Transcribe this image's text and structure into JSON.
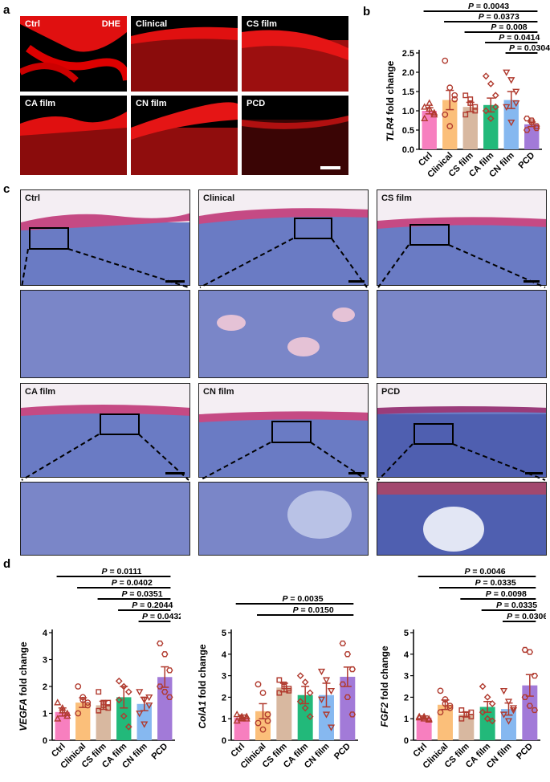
{
  "panels": {
    "a": "a",
    "b": "b",
    "c": "c",
    "d": "d"
  },
  "dhe": {
    "stain": "DHE",
    "tiles": [
      "Ctrl",
      "Clinical",
      "CS film",
      "CA film",
      "CN film",
      "PCD"
    ]
  },
  "he": {
    "tiles": [
      "Ctrl",
      "Clinical",
      "CS film",
      "CA film",
      "CN film",
      "PCD"
    ]
  },
  "colors": {
    "Ctrl": "#f77fbf",
    "Clinical": "#fbbf7a",
    "CS film": "#d8b8a0",
    "CA film": "#22b97a",
    "CN film": "#86b8f0",
    "PCD": "#a27ad8",
    "marker": "#b03a2e"
  },
  "chart_data": [
    {
      "type": "bar",
      "panel": "b",
      "ylabel": "TLR4 fold change",
      "ylabel_italic_part": "TLR4",
      "ylabel_rest": " fold change",
      "categories": [
        "Ctrl",
        "Clinical",
        "CS film",
        "CA film",
        "CN film",
        "PCD"
      ],
      "values": [
        1.0,
        1.28,
        1.1,
        1.15,
        1.28,
        0.65
      ],
      "errors": [
        0.08,
        0.25,
        0.12,
        0.18,
        0.22,
        0.06
      ],
      "points": [
        [
          1.1,
          1.05,
          0.95,
          0.8,
          1.2,
          0.9
        ],
        [
          2.3,
          1.6,
          1.3,
          0.9,
          0.6,
          1.4
        ],
        [
          1.4,
          1.2,
          1.0,
          0.9,
          1.3,
          1.1
        ],
        [
          1.9,
          1.7,
          1.4,
          1.0,
          0.8,
          1.1
        ],
        [
          2.0,
          1.8,
          1.5,
          1.1,
          0.7,
          1.2
        ],
        [
          0.8,
          0.7,
          0.6,
          0.5,
          0.75,
          0.55
        ]
      ],
      "markers": [
        "triangle",
        "circle",
        "square",
        "diamond",
        "triangle-down",
        "hexagon"
      ],
      "ylim": [
        0,
        2.5
      ],
      "yticks": [
        0.0,
        0.5,
        1.0,
        1.5,
        2.0,
        2.5
      ],
      "significance": [
        {
          "from": 0,
          "to": 5,
          "label": "P = 0.0043"
        },
        {
          "from": 1,
          "to": 5,
          "label": "P = 0.0373"
        },
        {
          "from": 2,
          "to": 5,
          "label": "P = 0.008"
        },
        {
          "from": 3,
          "to": 5,
          "label": "P = 0.0414"
        },
        {
          "from": 4,
          "to": 5,
          "label": "P = 0.0304"
        }
      ]
    },
    {
      "type": "bar",
      "panel": "d",
      "ylabel": "VEGFA fold change",
      "ylabel_italic_part": "VEGFA",
      "ylabel_rest": " fold change",
      "categories": [
        "Ctrl",
        "Clinical",
        "CS film",
        "CA film",
        "CN film",
        "PCD"
      ],
      "values": [
        1.05,
        1.4,
        1.3,
        1.6,
        1.35,
        2.35
      ],
      "errors": [
        0.15,
        0.18,
        0.15,
        0.4,
        0.25,
        0.38
      ],
      "points": [
        [
          1.4,
          1.1,
          0.9,
          0.8,
          1.2,
          1.0
        ],
        [
          2.0,
          1.6,
          1.3,
          1.0,
          1.5,
          1.4
        ],
        [
          1.8,
          1.4,
          1.2,
          1.1,
          1.3,
          1.4
        ],
        [
          2.2,
          2.0,
          1.8,
          1.5,
          0.9,
          0.5
        ],
        [
          1.8,
          1.5,
          1.3,
          1.0,
          0.6,
          1.6
        ],
        [
          3.6,
          3.2,
          2.6,
          2.0,
          1.8,
          1.6
        ]
      ],
      "markers": [
        "triangle",
        "circle",
        "square",
        "diamond",
        "triangle-down",
        "hexagon"
      ],
      "ylim": [
        0,
        4
      ],
      "yticks": [
        0,
        1,
        2,
        3,
        4
      ],
      "significance": [
        {
          "from": 0,
          "to": 5,
          "label": "P = 0.0111"
        },
        {
          "from": 1,
          "to": 5,
          "label": "P = 0.0402"
        },
        {
          "from": 2,
          "to": 5,
          "label": "P = 0.0351"
        },
        {
          "from": 3,
          "to": 5,
          "label": "P = 0.2044"
        },
        {
          "from": 4,
          "to": 5,
          "label": "P = 0.0432"
        }
      ]
    },
    {
      "type": "bar",
      "panel": "d",
      "ylabel": "ColA1 fold change",
      "ylabel_italic_part": "ColA1",
      "ylabel_rest": " fold change",
      "categories": [
        "Ctrl",
        "Clinical",
        "CS film",
        "CA film",
        "CN film",
        "PCD"
      ],
      "values": [
        1.05,
        1.35,
        2.45,
        2.1,
        2.1,
        2.95
      ],
      "errors": [
        0.12,
        0.35,
        0.2,
        0.4,
        0.55,
        0.45
      ],
      "points": [
        [
          1.2,
          1.1,
          1.0,
          0.9,
          1.0,
          1.1
        ],
        [
          2.6,
          2.2,
          1.2,
          0.8,
          0.5,
          0.9
        ],
        [
          2.8,
          2.6,
          2.4,
          2.2,
          2.5,
          2.3
        ],
        [
          3.0,
          2.7,
          2.2,
          1.8,
          1.5,
          1.1
        ],
        [
          3.2,
          2.8,
          2.3,
          1.9,
          1.2,
          0.6
        ],
        [
          4.5,
          4.0,
          3.3,
          2.6,
          2.0,
          1.2
        ]
      ],
      "markers": [
        "triangle",
        "circle",
        "square",
        "diamond",
        "triangle-down",
        "hexagon"
      ],
      "ylim": [
        0,
        5
      ],
      "yticks": [
        0,
        1,
        2,
        3,
        4,
        5
      ],
      "significance": [
        {
          "from": 0,
          "to": 5,
          "label": "P = 0.0035"
        },
        {
          "from": 1,
          "to": 5,
          "label": "P = 0.0150"
        }
      ]
    },
    {
      "type": "bar",
      "panel": "d",
      "ylabel": "FGF2 fold change",
      "ylabel_italic_part": "FGF2",
      "ylabel_rest": " fold change",
      "categories": [
        "Ctrl",
        "Clinical",
        "CS film",
        "CA film",
        "CN film",
        "PCD"
      ],
      "values": [
        1.05,
        1.65,
        1.2,
        1.55,
        1.45,
        2.55
      ],
      "errors": [
        0.08,
        0.22,
        0.12,
        0.25,
        0.28,
        0.5
      ],
      "points": [
        [
          1.1,
          1.0,
          0.95,
          1.05,
          1.1,
          1.0
        ],
        [
          2.3,
          1.9,
          1.6,
          1.3,
          1.7,
          1.5
        ],
        [
          1.4,
          1.2,
          1.1,
          1.0,
          1.2,
          1.3
        ],
        [
          2.5,
          2.0,
          1.7,
          1.3,
          1.0,
          0.9
        ],
        [
          2.3,
          1.8,
          1.5,
          1.2,
          0.9,
          1.4
        ],
        [
          4.2,
          4.1,
          3.0,
          2.0,
          1.6,
          1.4
        ]
      ],
      "markers": [
        "triangle",
        "circle",
        "square",
        "diamond",
        "triangle-down",
        "hexagon"
      ],
      "ylim": [
        0,
        5
      ],
      "yticks": [
        0,
        1,
        2,
        3,
        4,
        5
      ],
      "significance": [
        {
          "from": 0,
          "to": 5,
          "label": "P = 0.0046"
        },
        {
          "from": 1,
          "to": 5,
          "label": "P = 0.0335"
        },
        {
          "from": 2,
          "to": 5,
          "label": "P = 0.0098"
        },
        {
          "from": 3,
          "to": 5,
          "label": "P = 0.0335"
        },
        {
          "from": 4,
          "to": 5,
          "label": "P = 0.0306"
        }
      ]
    }
  ]
}
